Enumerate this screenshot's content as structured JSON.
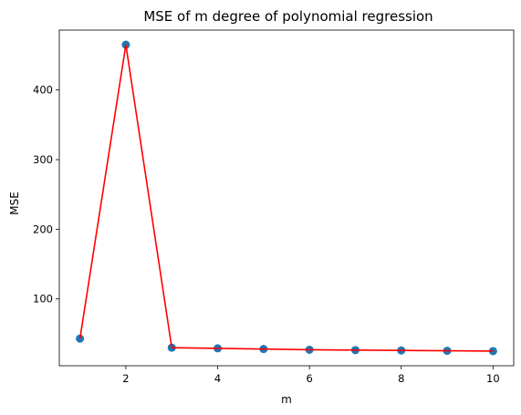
{
  "chart_data": {
    "type": "line",
    "title": "MSE of m degree of polynomial regression",
    "xlabel": "m",
    "ylabel": "MSE",
    "x": [
      1,
      2,
      3,
      4,
      5,
      6,
      7,
      8,
      9,
      10
    ],
    "series": [
      {
        "values": [
          43,
          465,
          30,
          29,
          28,
          27,
          26.5,
          26,
          25.5,
          25
        ],
        "line_color": "#ff0000",
        "marker_color": "#1f77b4"
      }
    ],
    "xlim": [
      0.55,
      10.45
    ],
    "ylim": [
      4,
      486
    ],
    "xticks": [
      2,
      4,
      6,
      8,
      10
    ],
    "yticks": [
      100,
      200,
      300,
      400
    ],
    "grid": false
  }
}
